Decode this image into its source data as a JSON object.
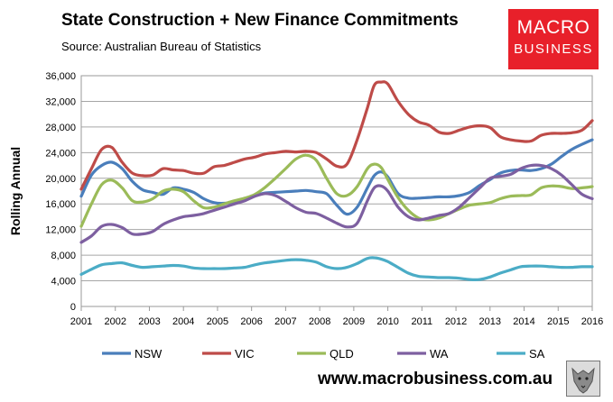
{
  "header": {
    "title": "State Construction + New Finance Commitments",
    "subtitle": "Source: Australian Bureau of Statistics"
  },
  "logo": {
    "line1": "MACRO",
    "line2": "BUSINESS",
    "background": "#e8202a"
  },
  "footer": {
    "website": "www.macrobusiness.com.au"
  },
  "chart_data": {
    "type": "line",
    "title": "State Construction + New Finance Commitments",
    "xlabel": "",
    "ylabel": "Rolling Annual",
    "ylim": [
      0,
      36000
    ],
    "xlim": [
      2001,
      2016
    ],
    "yticks": [
      0,
      4000,
      8000,
      12000,
      16000,
      20000,
      24000,
      28000,
      32000,
      36000
    ],
    "ytick_labels": [
      "0",
      "4,000",
      "8,000",
      "12,000",
      "16,000",
      "20,000",
      "24,000",
      "28,000",
      "32,000",
      "36,000"
    ],
    "xticks": [
      "2001",
      "2002",
      "2003",
      "2004",
      "2005",
      "2006",
      "2007",
      "2008",
      "2009",
      "2010",
      "2011",
      "2012",
      "2013",
      "2014",
      "2015",
      "2016"
    ],
    "grid": true,
    "legend": "bottom",
    "series": [
      {
        "name": "NSW",
        "color": "#4a7ebb",
        "x": [
          2001,
          2001.3,
          2001.6,
          2001.9,
          2002.2,
          2002.5,
          2002.8,
          2003.1,
          2003.4,
          2003.7,
          2004.0,
          2004.3,
          2004.6,
          2004.9,
          2005.2,
          2005.5,
          2005.8,
          2006.1,
          2006.4,
          2006.7,
          2007.0,
          2007.3,
          2007.6,
          2007.9,
          2008.2,
          2008.5,
          2008.8,
          2009.1,
          2009.4,
          2009.6,
          2009.8,
          2010.0,
          2010.3,
          2010.6,
          2010.9,
          2011.2,
          2011.5,
          2011.8,
          2012.1,
          2012.4,
          2012.7,
          2013.0,
          2013.3,
          2013.6,
          2013.9,
          2014.2,
          2014.5,
          2014.8,
          2015.1,
          2015.4,
          2015.7,
          2016.0
        ],
        "y": [
          17200,
          20500,
          22000,
          22500,
          21500,
          19500,
          18200,
          17800,
          17500,
          18500,
          18300,
          17800,
          16800,
          16200,
          16100,
          16400,
          16800,
          17300,
          17700,
          17800,
          17900,
          18000,
          18100,
          17900,
          17600,
          15800,
          14400,
          15500,
          18500,
          20400,
          21000,
          20200,
          17600,
          16900,
          16900,
          17000,
          17100,
          17100,
          17300,
          17800,
          18900,
          19800,
          20800,
          21200,
          21300,
          21200,
          21500,
          22200,
          23400,
          24500,
          25300,
          26000
        ]
      },
      {
        "name": "VIC",
        "color": "#be4b48",
        "x": [
          2001,
          2001.3,
          2001.6,
          2001.9,
          2002.2,
          2002.5,
          2002.8,
          2003.1,
          2003.4,
          2003.7,
          2004.0,
          2004.3,
          2004.6,
          2004.9,
          2005.2,
          2005.5,
          2005.8,
          2006.1,
          2006.4,
          2006.7,
          2007.0,
          2007.3,
          2007.6,
          2007.9,
          2008.2,
          2008.5,
          2008.8,
          2009.1,
          2009.4,
          2009.6,
          2009.8,
          2010.0,
          2010.3,
          2010.6,
          2010.9,
          2011.2,
          2011.5,
          2011.8,
          2012.1,
          2012.4,
          2012.7,
          2013.0,
          2013.3,
          2013.6,
          2013.9,
          2014.2,
          2014.5,
          2014.8,
          2015.1,
          2015.4,
          2015.7,
          2016.0
        ],
        "y": [
          18300,
          21500,
          24500,
          24800,
          22500,
          20800,
          20400,
          20500,
          21500,
          21300,
          21200,
          20800,
          20800,
          21800,
          22000,
          22500,
          23000,
          23300,
          23800,
          24000,
          24200,
          24100,
          24200,
          24000,
          23000,
          21900,
          22200,
          26000,
          31000,
          34500,
          35000,
          34700,
          32000,
          30000,
          28800,
          28300,
          27200,
          27000,
          27500,
          28000,
          28200,
          27900,
          26500,
          26000,
          25800,
          25800,
          26700,
          27000,
          27000,
          27100,
          27500,
          29000
        ]
      },
      {
        "name": "QLD",
        "color": "#9bbb59",
        "x": [
          2001,
          2001.3,
          2001.6,
          2001.9,
          2002.2,
          2002.5,
          2002.8,
          2003.1,
          2003.4,
          2003.7,
          2004.0,
          2004.3,
          2004.6,
          2004.9,
          2005.2,
          2005.5,
          2005.8,
          2006.1,
          2006.4,
          2006.7,
          2007.0,
          2007.3,
          2007.6,
          2007.9,
          2008.2,
          2008.5,
          2008.8,
          2009.1,
          2009.4,
          2009.6,
          2009.8,
          2010.0,
          2010.3,
          2010.6,
          2010.9,
          2011.2,
          2011.5,
          2011.8,
          2012.1,
          2012.4,
          2012.7,
          2013.0,
          2013.3,
          2013.6,
          2013.9,
          2014.2,
          2014.5,
          2014.8,
          2015.1,
          2015.4,
          2015.7,
          2016.0
        ],
        "y": [
          12500,
          16000,
          19000,
          19700,
          18500,
          16500,
          16300,
          16800,
          18000,
          18300,
          17900,
          16500,
          15400,
          15500,
          16000,
          16500,
          16900,
          17500,
          18600,
          20000,
          21500,
          23000,
          23600,
          22800,
          20000,
          17600,
          17300,
          18700,
          21500,
          22200,
          21700,
          19800,
          17000,
          15000,
          13800,
          13500,
          13800,
          14500,
          15200,
          15800,
          16000,
          16200,
          16800,
          17200,
          17300,
          17400,
          18500,
          18800,
          18700,
          18400,
          18500,
          18700
        ]
      },
      {
        "name": "WA",
        "color": "#7d5fa0",
        "x": [
          2001,
          2001.3,
          2001.6,
          2001.9,
          2002.2,
          2002.5,
          2002.8,
          2003.1,
          2003.4,
          2003.7,
          2004.0,
          2004.3,
          2004.6,
          2004.9,
          2005.2,
          2005.5,
          2005.8,
          2006.1,
          2006.4,
          2006.7,
          2007.0,
          2007.3,
          2007.6,
          2007.9,
          2008.2,
          2008.5,
          2008.8,
          2009.1,
          2009.4,
          2009.6,
          2009.8,
          2010.0,
          2010.3,
          2010.6,
          2010.9,
          2011.2,
          2011.5,
          2011.8,
          2012.1,
          2012.4,
          2012.7,
          2013.0,
          2013.3,
          2013.6,
          2013.9,
          2014.2,
          2014.5,
          2014.8,
          2015.1,
          2015.4,
          2015.7,
          2016.0
        ],
        "y": [
          10000,
          11000,
          12500,
          12800,
          12300,
          11300,
          11300,
          11700,
          12800,
          13500,
          14000,
          14200,
          14500,
          15000,
          15500,
          16000,
          16500,
          17200,
          17600,
          17300,
          16400,
          15400,
          14700,
          14500,
          13800,
          13000,
          12400,
          13000,
          16500,
          18500,
          18800,
          18000,
          15500,
          14000,
          13500,
          13800,
          14200,
          14500,
          15500,
          17000,
          18500,
          20000,
          20300,
          20600,
          21500,
          22000,
          22000,
          21500,
          20500,
          19000,
          17500,
          16800
        ]
      },
      {
        "name": "SA",
        "color": "#4bacc6",
        "x": [
          2001,
          2001.3,
          2001.6,
          2001.9,
          2002.2,
          2002.5,
          2002.8,
          2003.1,
          2003.4,
          2003.7,
          2004.0,
          2004.3,
          2004.6,
          2004.9,
          2005.2,
          2005.5,
          2005.8,
          2006.1,
          2006.4,
          2006.7,
          2007.0,
          2007.3,
          2007.6,
          2007.9,
          2008.2,
          2008.5,
          2008.8,
          2009.1,
          2009.4,
          2009.6,
          2009.8,
          2010.0,
          2010.3,
          2010.6,
          2010.9,
          2011.2,
          2011.5,
          2011.8,
          2012.1,
          2012.4,
          2012.7,
          2013.0,
          2013.3,
          2013.6,
          2013.9,
          2014.2,
          2014.5,
          2014.8,
          2015.1,
          2015.4,
          2015.7,
          2016.0
        ],
        "y": [
          5000,
          5800,
          6500,
          6700,
          6800,
          6400,
          6100,
          6200,
          6300,
          6400,
          6300,
          6000,
          5900,
          5900,
          5900,
          6000,
          6100,
          6500,
          6800,
          7000,
          7200,
          7300,
          7200,
          6900,
          6200,
          5900,
          6100,
          6700,
          7500,
          7600,
          7400,
          7000,
          6100,
          5200,
          4700,
          4600,
          4500,
          4500,
          4400,
          4200,
          4200,
          4600,
          5200,
          5700,
          6200,
          6300,
          6300,
          6200,
          6100,
          6100,
          6200,
          6200
        ]
      }
    ]
  }
}
